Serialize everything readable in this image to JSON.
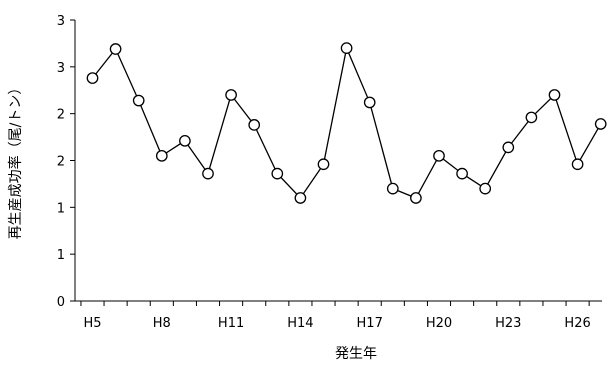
{
  "chart_data": {
    "type": "line",
    "xlabel": "発生年",
    "ylabel": "再生産成功率（尾/トン）",
    "ylim": [
      0,
      3
    ],
    "y_ticks": [
      0,
      0.5,
      1,
      1.5,
      2,
      2.5,
      3
    ],
    "y_tick_labels": [
      "0",
      "1",
      "1",
      "2",
      "2",
      "3",
      "3"
    ],
    "categories": [
      "H5",
      "H6",
      "H7",
      "H8",
      "H9",
      "H10",
      "H11",
      "H12",
      "H13",
      "H14",
      "H15",
      "H16",
      "H17",
      "H18",
      "H19",
      "H20",
      "H21",
      "H22",
      "H23",
      "H24",
      "H25",
      "H26",
      "H27"
    ],
    "x_tick_labels": [
      "H5",
      "",
      "",
      "H8",
      "",
      "",
      "H11",
      "",
      "",
      "H14",
      "",
      "",
      "H17",
      "",
      "",
      "H20",
      "",
      "",
      "H23",
      "",
      "",
      "H26",
      ""
    ],
    "series": [
      {
        "values": [
          2.38,
          2.69,
          2.14,
          1.55,
          1.71,
          1.36,
          2.2,
          1.88,
          1.36,
          1.1,
          1.46,
          2.7,
          2.12,
          1.2,
          1.1,
          1.55,
          1.36,
          1.2,
          1.64,
          1.96,
          2.2,
          1.46,
          1.89
        ],
        "color": "#000000",
        "marker": "circle-open"
      }
    ],
    "grid": false,
    "legend": "none"
  }
}
